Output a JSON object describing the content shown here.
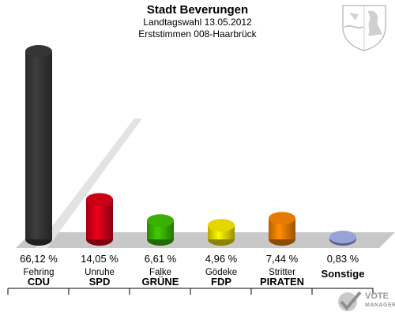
{
  "header": {
    "title": "Stadt Beverungen",
    "subtitle": "Landtagswahl 13.05.2012",
    "district": "Erststimmen 008-Haarbrück"
  },
  "chart_data": {
    "type": "bar",
    "categories": [
      "CDU",
      "SPD",
      "GRÜNE",
      "FDP",
      "PIRATEN",
      "Sonstige"
    ],
    "candidates": [
      "Fehring",
      "Unruhe",
      "Falke",
      "Gödeke",
      "Stritter",
      ""
    ],
    "values": [
      66.12,
      14.05,
      6.61,
      4.96,
      7.44,
      0.83
    ],
    "value_labels": [
      "66,12 %",
      "14,05 %",
      "6,61 %",
      "4,96 %",
      "7,44 %",
      "0,83 %"
    ],
    "colors": [
      "#3b3b3b",
      "#e2001a",
      "#3fc200",
      "#ffee00",
      "#ff8800",
      "#a8b4f0"
    ],
    "ylim": [
      0,
      70
    ],
    "grid": false,
    "legend": "none"
  },
  "logo": {
    "line1": "VOTE",
    "line2": "MANAGER"
  }
}
